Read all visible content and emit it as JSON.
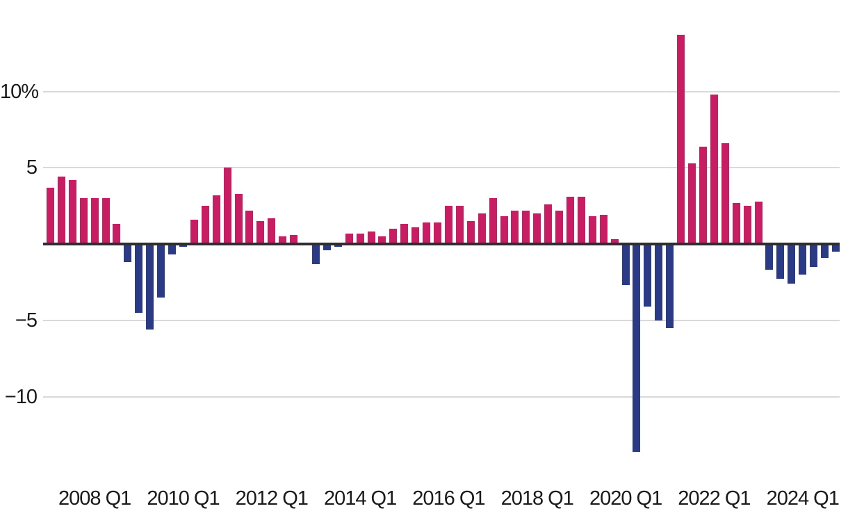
{
  "chart_data": {
    "type": "bar",
    "title": "",
    "unit": "%",
    "grid": true,
    "legend": false,
    "x": [
      "2007 Q1",
      "2007 Q2",
      "2007 Q3",
      "2007 Q4",
      "2008 Q1",
      "2008 Q2",
      "2008 Q3",
      "2008 Q4",
      "2009 Q1",
      "2009 Q2",
      "2009 Q3",
      "2009 Q4",
      "2010 Q1",
      "2010 Q2",
      "2010 Q3",
      "2010 Q4",
      "2011 Q1",
      "2011 Q2",
      "2011 Q3",
      "2011 Q4",
      "2012 Q1",
      "2012 Q2",
      "2012 Q3",
      "2012 Q4",
      "2013 Q1",
      "2013 Q2",
      "2013 Q3",
      "2013 Q4",
      "2014 Q1",
      "2014 Q2",
      "2014 Q3",
      "2014 Q4",
      "2015 Q1",
      "2015 Q2",
      "2015 Q3",
      "2015 Q4",
      "2016 Q1",
      "2016 Q2",
      "2016 Q3",
      "2016 Q4",
      "2017 Q1",
      "2017 Q2",
      "2017 Q3",
      "2017 Q4",
      "2018 Q1",
      "2018 Q2",
      "2018 Q3",
      "2018 Q4",
      "2019 Q1",
      "2019 Q2",
      "2019 Q3",
      "2019 Q4",
      "2020 Q1",
      "2020 Q2",
      "2020 Q3",
      "2020 Q4",
      "2021 Q1",
      "2021 Q2",
      "2021 Q3",
      "2021 Q4",
      "2022 Q1",
      "2022 Q2",
      "2022 Q3",
      "2022 Q4",
      "2023 Q1",
      "2023 Q2",
      "2023 Q3",
      "2023 Q4",
      "2024 Q1",
      "2024 Q2",
      "2024 Q3",
      "2024 Q4"
    ],
    "values": [
      3.7,
      4.4,
      4.2,
      3.0,
      3.0,
      3.0,
      1.3,
      -1.2,
      -4.5,
      -5.6,
      -3.5,
      -0.7,
      -0.2,
      1.6,
      2.5,
      3.2,
      5.0,
      3.3,
      2.2,
      1.5,
      1.7,
      0.5,
      0.6,
      0.0,
      -1.3,
      -0.4,
      -0.2,
      0.7,
      0.7,
      0.8,
      0.5,
      1.0,
      1.3,
      1.1,
      1.4,
      1.4,
      2.5,
      2.5,
      1.5,
      2.0,
      3.0,
      1.8,
      2.2,
      2.2,
      2.0,
      2.6,
      2.2,
      3.1,
      3.1,
      1.8,
      1.9,
      0.3,
      -2.7,
      -13.6,
      -4.1,
      -5.0,
      -5.5,
      13.7,
      5.3,
      6.4,
      9.8,
      6.6,
      2.7,
      2.5,
      2.8,
      -1.7,
      -2.3,
      -2.6,
      -2.0,
      -1.5,
      -0.9,
      -0.5
    ],
    "y_axis": {
      "ticks": [
        {
          "label": "10%",
          "value": 10
        },
        {
          "label": "5",
          "value": 5
        },
        {
          "label": "−5",
          "value": -5
        },
        {
          "label": "−10",
          "value": -10
        }
      ],
      "range": [
        -14,
        14
      ]
    },
    "x_axis": {
      "tick_labels": [
        {
          "label": "2008 Q1",
          "index": 4
        },
        {
          "label": "2010 Q1",
          "index": 12
        },
        {
          "label": "2012 Q1",
          "index": 20
        },
        {
          "label": "2014 Q1",
          "index": 28
        },
        {
          "label": "2016 Q1",
          "index": 36
        },
        {
          "label": "2018 Q1",
          "index": 44
        },
        {
          "label": "2020 Q1",
          "index": 52
        },
        {
          "label": "2022 Q1",
          "index": 60
        },
        {
          "label": "2024 Q1",
          "index": 68
        }
      ]
    },
    "colors": {
      "positive": "#c81d63",
      "negative": "#2b3a85",
      "axis_line": "#2e2d32",
      "gridline": "#d9d9d9",
      "label_text": "#1a1a1a",
      "background": "#ffffff"
    }
  }
}
